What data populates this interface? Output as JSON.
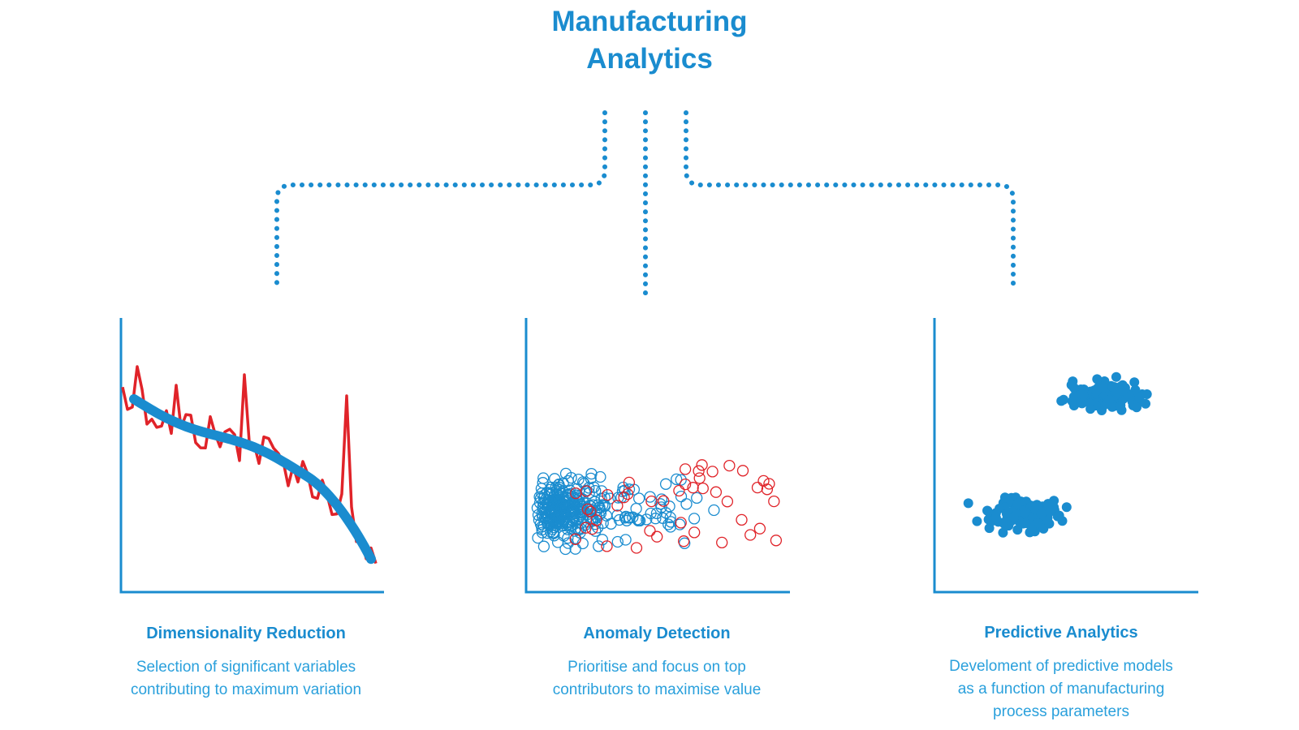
{
  "title": {
    "line1": "Manufacturing",
    "line2": "Analytics"
  },
  "colors": {
    "accent": "#1a8ccf",
    "text_light": "#2aa0dc",
    "highlight": "#e02329"
  },
  "connectors": {
    "style": "dotted",
    "icon": "dotted-branch-connector"
  },
  "panels": [
    {
      "id": "dimensionality",
      "title": "Dimensionality Reduction",
      "description": [
        "Selection of significant variables",
        "contributing to maximum variation"
      ],
      "visual": "line chart with a noisy red series and a smoothed blue trend decreasing left to right"
    },
    {
      "id": "anomaly",
      "title": "Anomaly Detection",
      "description": [
        "Prioritise and focus on top",
        "contributors to maximise value"
      ],
      "visual": "scatter plot of hollow blue circles with scattered red outlier circles"
    },
    {
      "id": "predictive",
      "title": "Predictive Analytics",
      "description": [
        "Develoment of predictive models",
        "as a function of manufacturing",
        "process parameters"
      ],
      "visual": "two clusters of filled blue dots"
    }
  ]
}
